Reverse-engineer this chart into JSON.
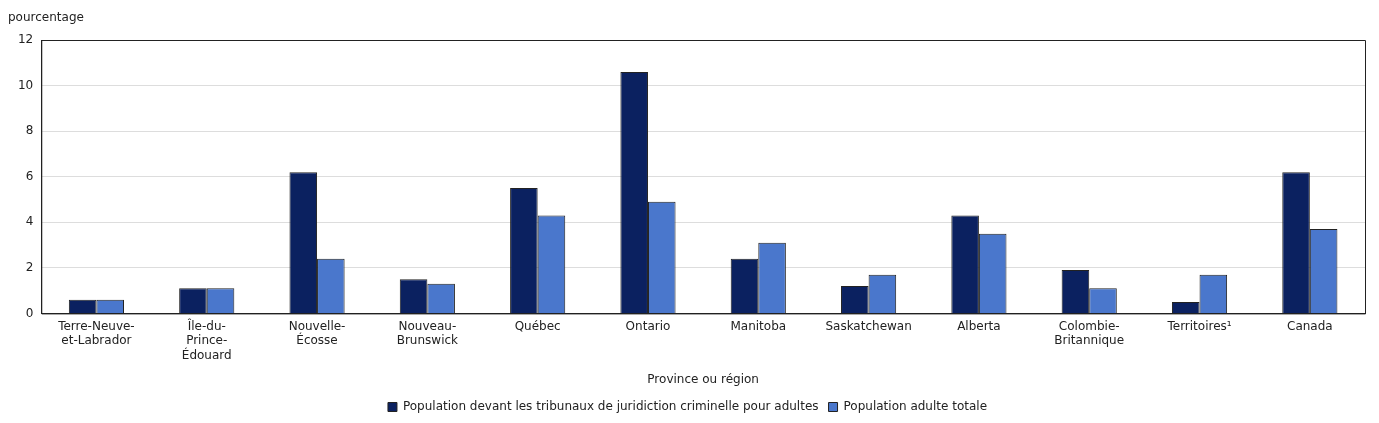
{
  "chart_data": {
    "type": "bar",
    "ylabel": "pourcentage",
    "xlabel": "Province ou région",
    "categories": [
      "Terre-Neuve-et-Labrador",
      "Île-du-Prince-Édouard",
      "Nouvelle-Écosse",
      "Nouveau-Brunswick",
      "Québec",
      "Ontario",
      "Manitoba",
      "Saskatchewan",
      "Alberta",
      "Colombie-Britannique",
      "Territoires¹",
      "Canada"
    ],
    "series": [
      {
        "name": "Population devant les tribunaux de juridiction criminelle pour adultes",
        "color": "#0b2160",
        "values": [
          0.6,
          1.1,
          6.2,
          1.5,
          5.5,
          10.6,
          2.4,
          1.2,
          4.3,
          1.9,
          0.5,
          6.2
        ]
      },
      {
        "name": "Population adulte totale",
        "color": "#4a77cc",
        "values": [
          0.6,
          1.1,
          2.4,
          1.3,
          4.3,
          4.9,
          3.1,
          1.7,
          3.5,
          1.1,
          1.7,
          3.7
        ]
      }
    ],
    "ylim": [
      0,
      12
    ],
    "yticks": [
      0,
      2,
      4,
      6,
      8,
      10,
      12
    ],
    "grid": "y",
    "legend": "bottom"
  }
}
